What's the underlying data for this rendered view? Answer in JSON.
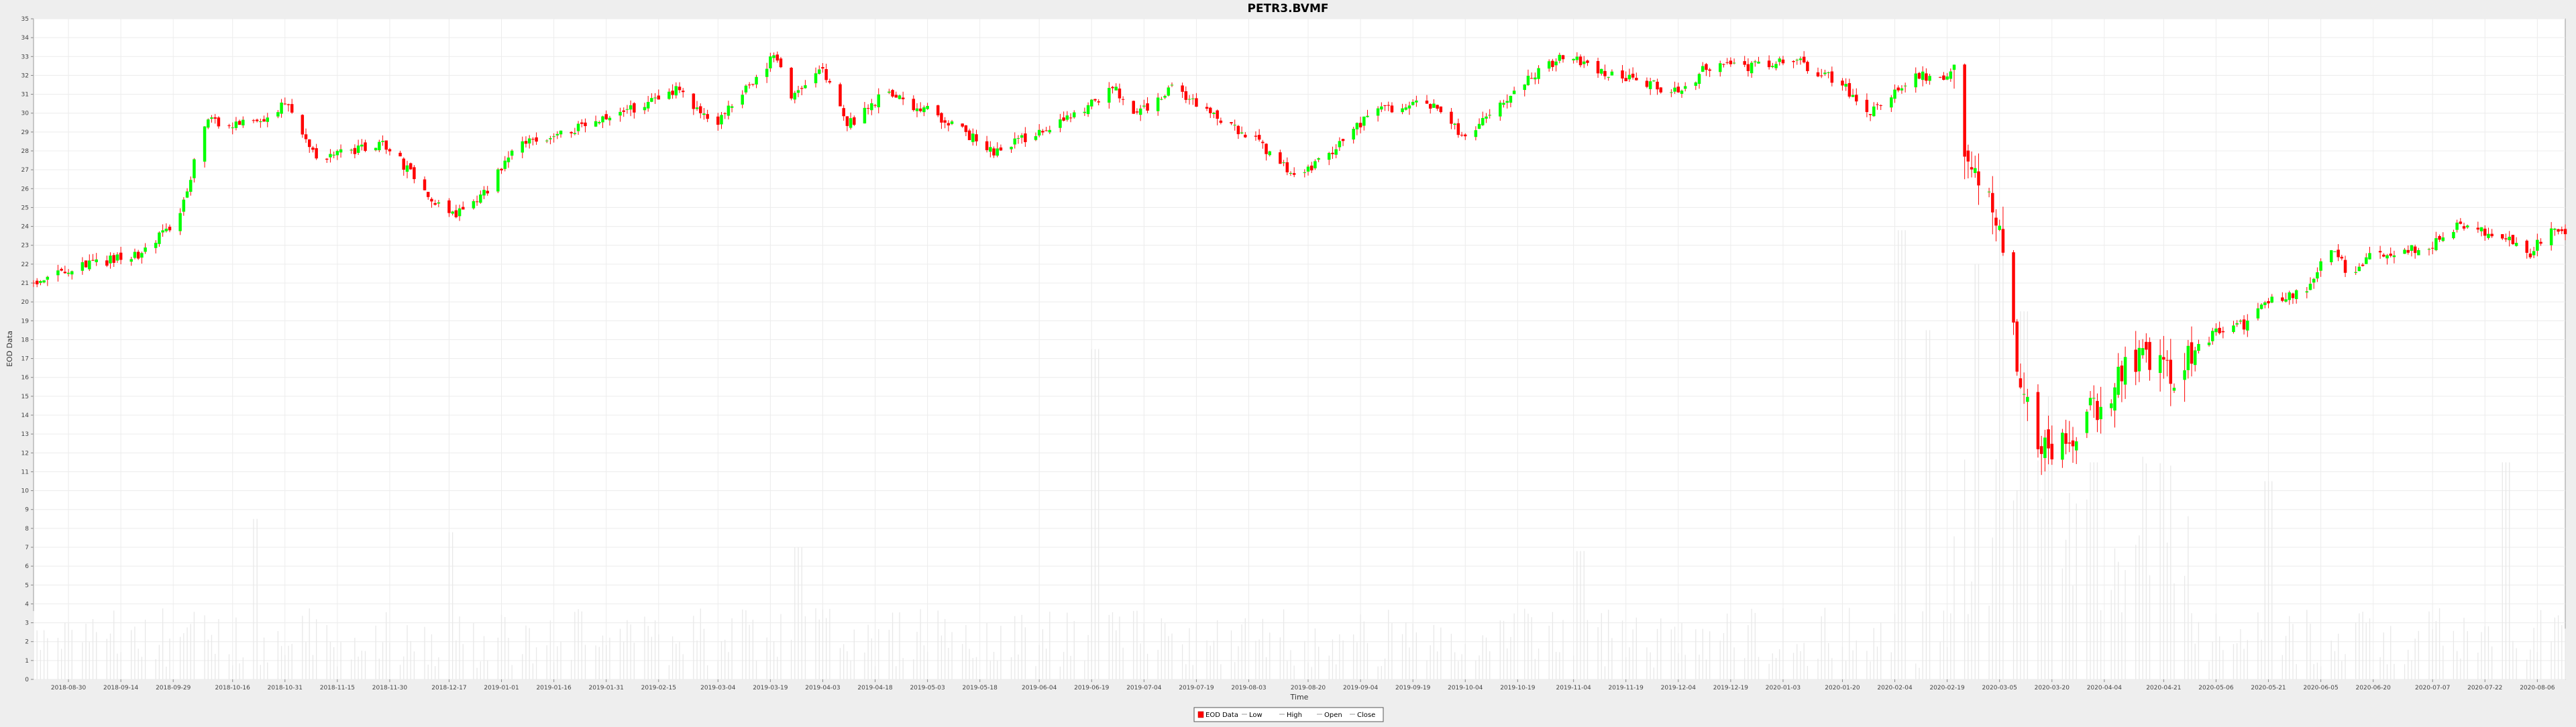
{
  "chart_data": {
    "type": "candlestick",
    "title": "PETR3.BVMF",
    "xlabel": "Time",
    "ylabel": "EOD Data",
    "ylim": [
      0,
      35
    ],
    "yticks": [
      0,
      1,
      2,
      3,
      4,
      5,
      6,
      7,
      8,
      9,
      10,
      11,
      12,
      13,
      14,
      15,
      16,
      17,
      18,
      19,
      20,
      21,
      22,
      23,
      24,
      25,
      26,
      27,
      28,
      29,
      30,
      31,
      32,
      33,
      34,
      35
    ],
    "xrange": [
      "2018-08-20",
      "2020-08-14"
    ],
    "xticks": [
      "2018-08-30",
      "2018-09-14",
      "2018-09-29",
      "2018-10-16",
      "2018-10-31",
      "2018-11-15",
      "2018-11-30",
      "2018-12-17",
      "2019-01-01",
      "2019-01-16",
      "2019-01-31",
      "2019-02-15",
      "2019-03-04",
      "2019-03-19",
      "2019-04-03",
      "2019-04-18",
      "2019-05-03",
      "2019-05-18",
      "2019-06-04",
      "2019-06-19",
      "2019-07-04",
      "2019-07-19",
      "2019-08-03",
      "2019-08-20",
      "2019-09-04",
      "2019-09-19",
      "2019-10-04",
      "2019-10-19",
      "2019-11-04",
      "2019-11-19",
      "2019-12-04",
      "2019-12-19",
      "2020-01-03",
      "2020-01-20",
      "2020-02-04",
      "2020-02-19",
      "2020-03-05",
      "2020-03-20",
      "2020-04-04",
      "2020-04-21",
      "2020-05-06",
      "2020-05-21",
      "2020-06-05",
      "2020-06-20",
      "2020-07-07",
      "2020-07-22",
      "2020-08-06"
    ],
    "grid": true,
    "legend_position": "bottom-center",
    "legend": [
      "EOD Data",
      "Low",
      "High",
      "Open",
      "Close"
    ],
    "close_anchors": [
      [
        "2018-08-20",
        21.0
      ],
      [
        "2018-09-05",
        22.0
      ],
      [
        "2018-09-20",
        22.5
      ],
      [
        "2018-10-01",
        24.5
      ],
      [
        "2018-10-08",
        29.5
      ],
      [
        "2018-10-25",
        29.5
      ],
      [
        "2018-10-31",
        30.5
      ],
      [
        "2018-11-10",
        27.5
      ],
      [
        "2018-11-28",
        28.5
      ],
      [
        "2018-12-17",
        24.5
      ],
      [
        "2018-12-26",
        25.5
      ],
      [
        "2019-01-07",
        28.5
      ],
      [
        "2019-01-20",
        29.0
      ],
      [
        "2019-02-05",
        30.0
      ],
      [
        "2019-02-20",
        31.2
      ],
      [
        "2019-03-04",
        29.5
      ],
      [
        "2019-03-15",
        32.0
      ],
      [
        "2019-03-20",
        33.0
      ],
      [
        "2019-03-25",
        31.0
      ],
      [
        "2019-04-03",
        32.3
      ],
      [
        "2019-04-10",
        29.3
      ],
      [
        "2019-04-20",
        31.0
      ],
      [
        "2019-05-05",
        30.0
      ],
      [
        "2019-05-22",
        28.0
      ],
      [
        "2019-06-05",
        29.0
      ],
      [
        "2019-06-19",
        30.5
      ],
      [
        "2019-06-25",
        31.5
      ],
      [
        "2019-07-02",
        29.8
      ],
      [
        "2019-07-12",
        31.5
      ],
      [
        "2019-07-22",
        30.0
      ],
      [
        "2019-08-05",
        28.5
      ],
      [
        "2019-08-15",
        26.8
      ],
      [
        "2019-08-25",
        27.5
      ],
      [
        "2019-09-06",
        29.8
      ],
      [
        "2019-09-16",
        30.5
      ],
      [
        "2019-09-26",
        30.3
      ],
      [
        "2019-10-04",
        28.5
      ],
      [
        "2019-10-19",
        31.5
      ],
      [
        "2019-11-02",
        33.2
      ],
      [
        "2019-11-12",
        32.2
      ],
      [
        "2019-11-25",
        31.6
      ],
      [
        "2019-12-05",
        31.0
      ],
      [
        "2019-12-12",
        32.5
      ],
      [
        "2019-12-27",
        32.5
      ],
      [
        "2020-01-05",
        33.0
      ],
      [
        "2020-01-20",
        31.5
      ],
      [
        "2020-01-28",
        30.0
      ],
      [
        "2020-02-10",
        32.0
      ],
      [
        "2020-02-18",
        31.8
      ],
      [
        "2020-02-21",
        32.5
      ],
      [
        "2020-02-24",
        28.0
      ],
      [
        "2020-02-28",
        27.0
      ],
      [
        "2020-03-06",
        23.5
      ],
      [
        "2020-03-10",
        17.0
      ],
      [
        "2020-03-16",
        13.0
      ],
      [
        "2020-03-20",
        11.2
      ],
      [
        "2020-03-27",
        13.5
      ],
      [
        "2020-04-04",
        15.0
      ],
      [
        "2020-04-12",
        17.0
      ],
      [
        "2020-04-24",
        16.2
      ],
      [
        "2020-05-06",
        18.5
      ],
      [
        "2020-05-14",
        18.8
      ],
      [
        "2020-05-21",
        20.0
      ],
      [
        "2020-06-01",
        20.5
      ],
      [
        "2020-06-08",
        23.0
      ],
      [
        "2020-06-13",
        21.5
      ],
      [
        "2020-06-20",
        22.5
      ],
      [
        "2020-07-07",
        23.0
      ],
      [
        "2020-07-14",
        24.0
      ],
      [
        "2020-07-28",
        23.5
      ],
      [
        "2020-08-04",
        22.5
      ],
      [
        "2020-08-09",
        23.8
      ],
      [
        "2020-08-14",
        23.5
      ]
    ],
    "volume_peaks": [
      [
        "2019-06-20",
        17.5
      ],
      [
        "2020-02-06",
        23.8
      ],
      [
        "2020-02-14",
        18.5
      ],
      [
        "2020-02-28",
        22.0
      ],
      [
        "2020-03-06",
        24.0
      ],
      [
        "2020-03-12",
        19.5
      ],
      [
        "2020-03-20",
        15.0
      ],
      [
        "2020-04-01",
        11.5
      ],
      [
        "2018-10-22",
        8.5
      ],
      [
        "2018-12-17",
        7.8
      ],
      [
        "2019-03-27",
        7.0
      ],
      [
        "2019-11-06",
        6.8
      ],
      [
        "2020-05-21",
        10.5
      ],
      [
        "2020-07-28",
        11.5
      ]
    ],
    "colors": {
      "up": "#00ff00",
      "down": "#ff0000",
      "wick": "#ff0000",
      "volume": "#e8e8e8",
      "plot_bg": "#ffffff",
      "grid": "#ececec",
      "axis": "#888888"
    }
  }
}
